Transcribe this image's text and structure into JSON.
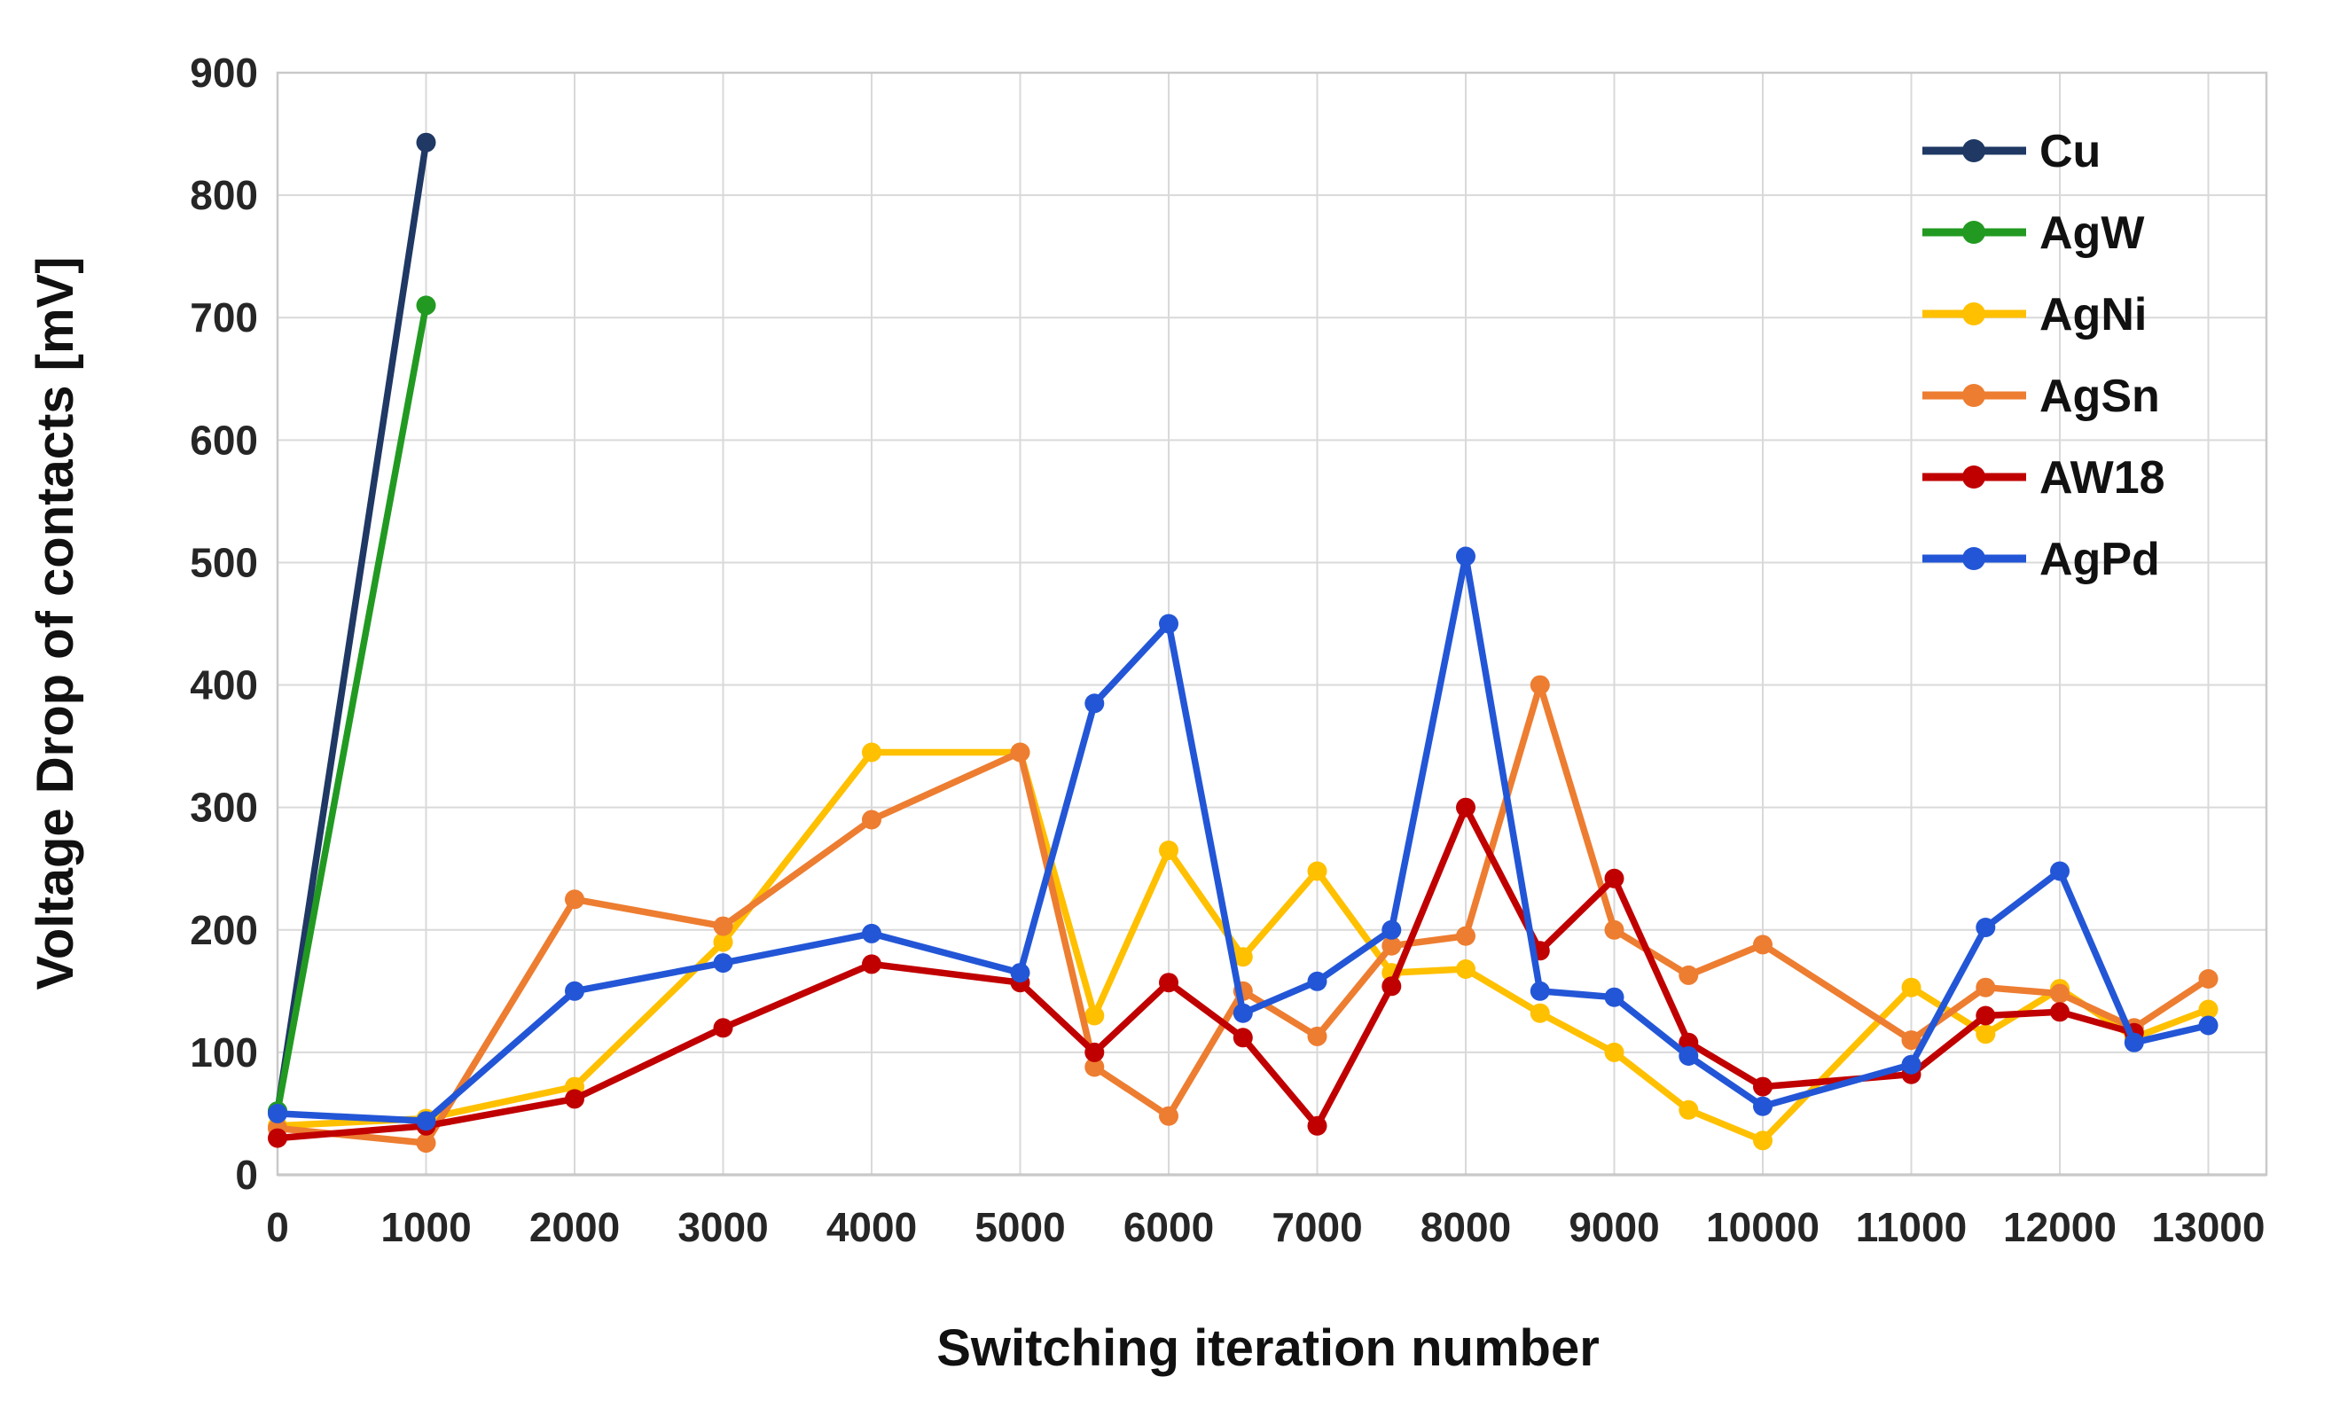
{
  "chart_data": {
    "type": "line",
    "title": "",
    "xlabel": "Switching iteration number",
    "ylabel": "Voltage Drop of contacts [mV]",
    "xlim": [
      0,
      13000
    ],
    "ylim": [
      0,
      900
    ],
    "x_tick_step": 1000,
    "y_tick_step": 100,
    "x_ticks": [
      0,
      1000,
      2000,
      3000,
      4000,
      5000,
      6000,
      7000,
      8000,
      9000,
      10000,
      11000,
      12000,
      13000
    ],
    "y_ticks": [
      0,
      100,
      200,
      300,
      400,
      500,
      600,
      700,
      800,
      900
    ],
    "grid": "on",
    "legend_position": "top-right-inside",
    "x": [
      0,
      1000,
      2000,
      3000,
      4000,
      5000,
      5500,
      6000,
      6500,
      7000,
      7500,
      8000,
      8500,
      9000,
      9500,
      10000,
      11000,
      11500,
      12000,
      12500,
      13000
    ],
    "series": [
      {
        "name": "Cu",
        "color": "#1F3864",
        "values": [
          52,
          843,
          null,
          null,
          null,
          null,
          null,
          null,
          null,
          null,
          null,
          null,
          null,
          null,
          null,
          null,
          null,
          null,
          null,
          null,
          null
        ]
      },
      {
        "name": "AgW",
        "color": "#229A22",
        "values": [
          52,
          710,
          null,
          null,
          null,
          null,
          null,
          null,
          null,
          null,
          null,
          null,
          null,
          null,
          null,
          null,
          null,
          null,
          null,
          null,
          null
        ]
      },
      {
        "name": "AgNi",
        "color": "#FFC000",
        "values": [
          40,
          46,
          72,
          190,
          345,
          345,
          130,
          265,
          178,
          248,
          165,
          168,
          132,
          100,
          53,
          28,
          153,
          115,
          152,
          112,
          135
        ]
      },
      {
        "name": "AgSn",
        "color": "#ED7D31",
        "values": [
          38,
          26,
          225,
          203,
          290,
          345,
          88,
          48,
          150,
          113,
          187,
          195,
          400,
          200,
          163,
          188,
          110,
          153,
          148,
          120,
          160
        ]
      },
      {
        "name": "AW18",
        "color": "#C00000",
        "values": [
          30,
          40,
          62,
          120,
          172,
          157,
          100,
          157,
          112,
          40,
          154,
          300,
          183,
          242,
          108,
          72,
          82,
          130,
          133,
          116,
          null
        ]
      },
      {
        "name": "AgPd",
        "color": "#2356D6",
        "values": [
          50,
          44,
          150,
          173,
          197,
          165,
          385,
          450,
          132,
          158,
          200,
          505,
          150,
          145,
          97,
          56,
          90,
          202,
          248,
          108,
          122
        ]
      }
    ],
    "colors": {
      "gridline": "#d9d9d9",
      "frame": "#c9c9c9",
      "tick_text": "#262626",
      "title_text": "#111111"
    }
  }
}
